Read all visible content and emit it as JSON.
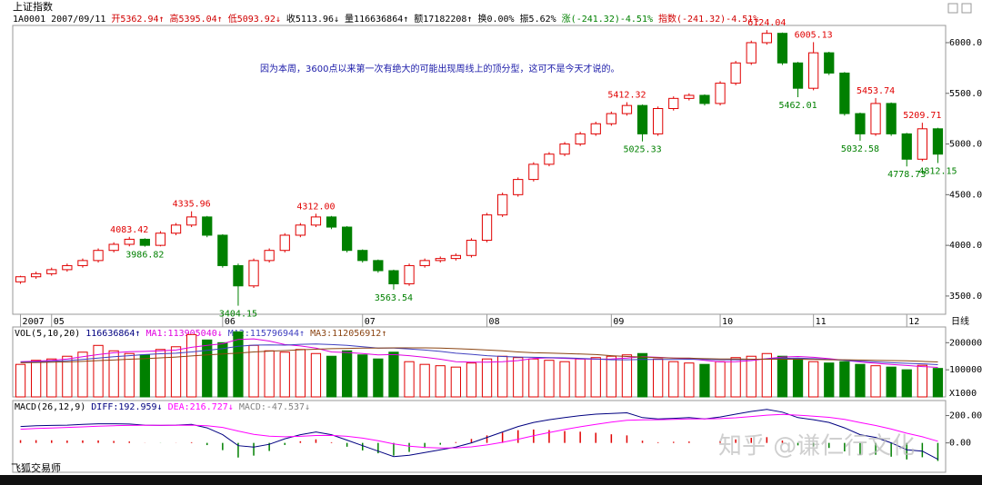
{
  "chart_data": [
    {
      "type": "candlestick",
      "title": "上证指数",
      "info": [
        {
          "text": "1A0001 2007/09/11",
          "color": "#000000"
        },
        {
          "text": "开5362.94↑",
          "color": "#d00000"
        },
        {
          "text": "高5395.04↑",
          "color": "#d00000"
        },
        {
          "text": "低5093.92↓",
          "color": "#d00000"
        },
        {
          "text": "收5113.96↓",
          "color": "#000000"
        },
        {
          "text": "量116636864↑",
          "color": "#000000"
        },
        {
          "text": "额17182208↑",
          "color": "#000000"
        },
        {
          "text": "换0.00%",
          "color": "#000000"
        },
        {
          "text": "振5.62%",
          "color": "#000000"
        },
        {
          "text": "涨(-241.32)-4.51%",
          "color": "#008000"
        },
        {
          "text": "指数(-241.32)-4.51%",
          "color": "#d00000"
        }
      ],
      "annotation": "因为本周，3600点以来第一次有绝大的可能出现周线上的顶分型，这可不是今天才说的。",
      "categories": [
        "2007",
        null,
        "05",
        null,
        null,
        null,
        null,
        null,
        null,
        null,
        null,
        null,
        null,
        "06",
        null,
        null,
        null,
        null,
        null,
        null,
        null,
        null,
        "07",
        null,
        null,
        null,
        null,
        null,
        null,
        null,
        "08",
        null,
        null,
        null,
        null,
        null,
        null,
        null,
        "09",
        null,
        null,
        null,
        null,
        null,
        null,
        "10",
        null,
        null,
        null,
        null,
        null,
        "11",
        null,
        null,
        null,
        null,
        null,
        "12",
        null,
        null
      ],
      "x_end_label": "日线",
      "open": [
        3640,
        3690,
        3720,
        3760,
        3800,
        3850,
        3950,
        4010,
        4060,
        4000,
        4120,
        4200,
        4280,
        4100,
        3800,
        3600,
        3850,
        3950,
        4100,
        4200,
        4280,
        4180,
        3950,
        3850,
        3750,
        3620,
        3800,
        3850,
        3870,
        3900,
        4050,
        4300,
        4500,
        4650,
        4800,
        4900,
        5000,
        5100,
        5200,
        5300,
        5380,
        5100,
        5350,
        5450,
        5480,
        5400,
        5600,
        5800,
        6000,
        6092,
        5800,
        5550,
        5900,
        5700,
        5300,
        5100,
        5400,
        5100,
        4850,
        5150
      ],
      "high": [
        3700,
        3740,
        3780,
        3820,
        3870,
        3970,
        4030,
        4083.42,
        4070,
        4140,
        4220,
        4335.96,
        4290,
        4110,
        3820,
        3870,
        3970,
        4120,
        4220,
        4312,
        4290,
        4190,
        3960,
        3860,
        3760,
        3820,
        3870,
        3890,
        3920,
        4070,
        4320,
        4520,
        4670,
        4820,
        4920,
        5020,
        5120,
        5220,
        5320,
        5412.32,
        5390,
        5370,
        5470,
        5500,
        5490,
        5620,
        5820,
        6020,
        6124.04,
        6100,
        5810,
        6005.13,
        5910,
        5710,
        5310,
        5453.74,
        5410,
        5110,
        5209.71,
        5160
      ],
      "low": [
        3620,
        3670,
        3700,
        3740,
        3780,
        3830,
        3930,
        3990,
        3986.82,
        3990,
        4100,
        4180,
        4080,
        3780,
        3404.15,
        3580,
        3830,
        3930,
        4080,
        4180,
        4160,
        3930,
        3830,
        3730,
        3563.54,
        3600,
        3780,
        3830,
        3850,
        3880,
        4030,
        4280,
        4480,
        4630,
        4780,
        4880,
        4980,
        5080,
        5180,
        5280,
        5025.33,
        5080,
        5330,
        5430,
        5380,
        5380,
        5580,
        5780,
        5980,
        5780,
        5462.01,
        5530,
        5680,
        5280,
        5032.58,
        5080,
        5080,
        4778.73,
        4830,
        4812.15
      ],
      "close": [
        3690,
        3720,
        3760,
        3800,
        3850,
        3950,
        4010,
        4060,
        4000,
        4120,
        4200,
        4280,
        4100,
        3800,
        3600,
        3850,
        3950,
        4100,
        4200,
        4280,
        4180,
        3950,
        3850,
        3750,
        3620,
        3800,
        3850,
        3870,
        3900,
        4050,
        4300,
        4500,
        4650,
        4800,
        4900,
        5000,
        5100,
        5200,
        5300,
        5380,
        5100,
        5350,
        5450,
        5480,
        5400,
        5600,
        5800,
        6000,
        6092,
        5800,
        5550,
        5900,
        5700,
        5300,
        5100,
        5400,
        5100,
        4850,
        5150,
        4900
      ],
      "up_color": "#e00000",
      "down_color": "#008000",
      "point_labels": [
        {
          "value": 4083.42,
          "label": "4083.42"
        },
        {
          "value": 3986.82,
          "label": "3986.82"
        },
        {
          "value": 4335.96,
          "label": "4335.96"
        },
        {
          "value": 3404.15,
          "label": "3404.15"
        },
        {
          "value": 4312,
          "label": "4312.00"
        },
        {
          "value": 3563.54,
          "label": "3563.54"
        },
        {
          "value": 5412.32,
          "label": "5412.32"
        },
        {
          "value": 5025.33,
          "label": "5025.33"
        },
        {
          "value": 6124.04,
          "label": "6124.04"
        },
        {
          "value": 5462.01,
          "label": "5462.01"
        },
        {
          "value": 6005.13,
          "label": "6005.13"
        },
        {
          "value": 5032.58,
          "label": "5032.58"
        },
        {
          "value": 5453.74,
          "label": "5453.74"
        },
        {
          "value": 4778.73,
          "label": "4778.73"
        },
        {
          "value": 5209.71,
          "label": "5209.71"
        },
        {
          "value": 4812.15,
          "label": "4812.15"
        }
      ],
      "ylim": [
        3320,
        6170
      ],
      "yticks": [
        {
          "value": 3500,
          "label": "3500.00"
        },
        {
          "value": 4000,
          "label": "4000.00"
        },
        {
          "value": 4500,
          "label": "4500.00"
        },
        {
          "value": 5000,
          "label": "5000.00"
        },
        {
          "value": 5500,
          "label": "5500.00"
        },
        {
          "value": 6000,
          "label": "6000.00"
        }
      ],
      "grid": false
    },
    {
      "type": "volume",
      "title": "VOL(5,10,20)",
      "info": [
        {
          "text": "116636864↑",
          "color": "#000080"
        }
      ],
      "values": [
        120000,
        135000,
        140000,
        150000,
        165000,
        190000,
        170000,
        160000,
        155000,
        175000,
        185000,
        230000,
        210000,
        200000,
        240000,
        190000,
        170000,
        165000,
        175000,
        160000,
        150000,
        170000,
        155000,
        140000,
        165000,
        130000,
        120000,
        115000,
        110000,
        125000,
        140000,
        150000,
        145000,
        140000,
        135000,
        130000,
        140000,
        145000,
        150000,
        155000,
        160000,
        140000,
        130000,
        125000,
        120000,
        130000,
        145000,
        150000,
        160000,
        150000,
        140000,
        130000,
        125000,
        130000,
        120000,
        115000,
        110000,
        100000,
        116637,
        105000
      ],
      "series": [
        {
          "name": "MA1:113905040↓",
          "color": "#e000e0",
          "values": [
            130000,
            132000,
            135000,
            140000,
            148000,
            156000,
            163000,
            167000,
            168000,
            170000,
            173000,
            183000,
            190000,
            196000,
            212000,
            214000,
            206000,
            193000,
            188000,
            180000,
            166000,
            164000,
            160000,
            155000,
            156000,
            152000,
            146000,
            139000,
            130000,
            128000,
            128000,
            130000,
            134000,
            142000,
            144000,
            142000,
            140000,
            139000,
            140000,
            143000,
            148000,
            146000,
            143000,
            141000,
            135000,
            129000,
            130000,
            134000,
            141000,
            147000,
            149000,
            146000,
            141000,
            135000,
            129000,
            124000,
            120000,
            116000,
            112000,
            109000
          ]
        },
        {
          "name": "MA2:115796944↑",
          "color": "#4040c0",
          "values": [
            128000,
            129000,
            131000,
            134000,
            138000,
            143000,
            148000,
            152000,
            156000,
            159000,
            161000,
            166000,
            172000,
            178000,
            187000,
            191000,
            192000,
            191000,
            194000,
            195000,
            193000,
            190000,
            185000,
            180000,
            180000,
            177000,
            173000,
            168000,
            161000,
            157000,
            152000,
            149000,
            147000,
            146000,
            145000,
            144000,
            142000,
            140000,
            137000,
            137000,
            138000,
            138000,
            138000,
            139000,
            138000,
            137000,
            137000,
            138000,
            140000,
            142000,
            143000,
            141000,
            138000,
            135000,
            132000,
            129000,
            126000,
            124000,
            122000,
            119000
          ]
        },
        {
          "name": "MA3:112056912↑",
          "color": "#8b4513",
          "values": [
            126000,
            127000,
            128000,
            129000,
            131000,
            134000,
            136000,
            139000,
            141000,
            144000,
            147000,
            151000,
            155000,
            158000,
            162000,
            166000,
            169000,
            171000,
            174000,
            176000,
            178000,
            179000,
            180000,
            180000,
            181000,
            181000,
            181000,
            180000,
            178000,
            176000,
            173000,
            170000,
            166000,
            163000,
            162000,
            160000,
            158000,
            156000,
            152000,
            149000,
            147000,
            145000,
            143000,
            143000,
            141000,
            140000,
            140000,
            139000,
            139000,
            139000,
            139000,
            138000,
            137000,
            137000,
            136000,
            135000,
            134000,
            133000,
            131000,
            129000
          ]
        }
      ],
      "unit_label": "X1000",
      "ylim": [
        0,
        258000
      ],
      "yticks": [
        100000,
        200000
      ]
    },
    {
      "type": "macd",
      "title": "MACD(26,12,9)",
      "series": [
        {
          "name": "DIFF:192.959↓",
          "color": "#000080",
          "values": [
            120,
            125,
            128,
            130,
            135,
            140,
            140,
            138,
            130,
            128,
            130,
            135,
            110,
            60,
            -20,
            -30,
            -10,
            30,
            60,
            80,
            60,
            20,
            -20,
            -60,
            -100,
            -90,
            -70,
            -50,
            -30,
            0,
            40,
            80,
            120,
            150,
            170,
            185,
            200,
            210,
            215,
            220,
            185,
            175,
            180,
            185,
            175,
            190,
            210,
            230,
            245,
            225,
            185,
            170,
            150,
            110,
            60,
            40,
            0,
            -50,
            -60,
            -120
          ]
        },
        {
          "name": "DEA:216.727↓",
          "color": "#ff00ff",
          "values": [
            100,
            105,
            109,
            113,
            117,
            122,
            126,
            128,
            129,
            129,
            129,
            130,
            126,
            113,
            87,
            63,
            49,
            45,
            48,
            54,
            55,
            48,
            35,
            16,
            -7,
            -24,
            -33,
            -37,
            -36,
            -29,
            -15,
            4,
            27,
            52,
            76,
            98,
            118,
            136,
            152,
            165,
            169,
            170,
            172,
            175,
            175,
            178,
            184,
            193,
            203,
            208,
            203,
            196,
            187,
            172,
            149,
            127,
            101,
            71,
            45,
            12
          ]
        },
        {
          "name": "MACD:-47.537↓",
          "color": "#808080",
          "style": "bar",
          "values": [
            20,
            20,
            19,
            17,
            18,
            18,
            14,
            10,
            1,
            -1,
            1,
            5,
            -16,
            -53,
            -107,
            -93,
            -59,
            -15,
            12,
            26,
            5,
            -28,
            -55,
            -76,
            -93,
            -66,
            -37,
            -13,
            6,
            29,
            55,
            76,
            93,
            98,
            94,
            87,
            82,
            74,
            63,
            55,
            16,
            5,
            8,
            10,
            0,
            12,
            26,
            37,
            42,
            17,
            -18,
            -26,
            -37,
            -62,
            -89,
            -87,
            -101,
            -121,
            -105,
            -132
          ]
        }
      ],
      "up_color": "#e00000",
      "down_color": "#008000",
      "ylim": [
        -215,
        310
      ],
      "yticks": [
        {
          "value": 0,
          "label": "0.00"
        },
        {
          "value": 200,
          "label": "200.00"
        }
      ]
    }
  ],
  "footer": "飞狐交易师",
  "watermark": "知乎 @谦仁行文化"
}
